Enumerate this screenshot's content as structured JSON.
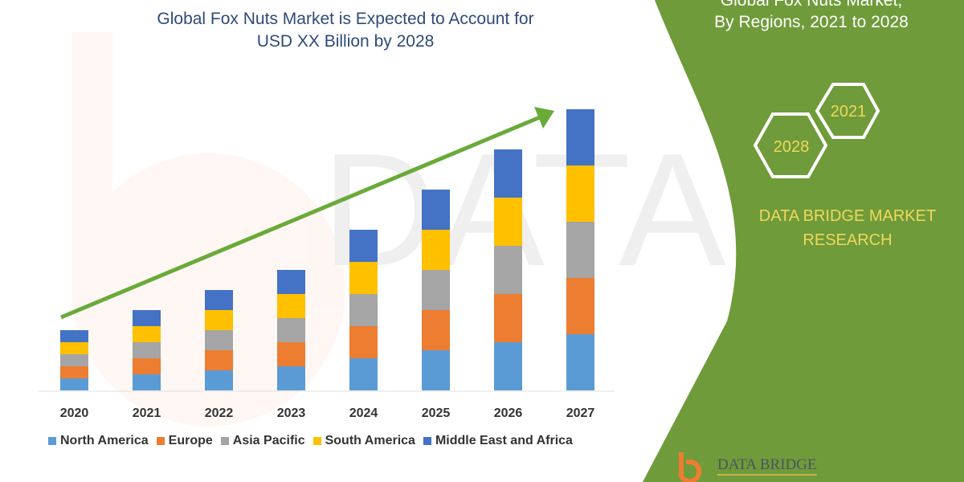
{
  "title_line1": "Global Fox Nuts Market is Expected to Account for",
  "title_line2": "USD XX Billion by 2028",
  "side_panel": {
    "title_line1": "Global Fox Nuts Market,",
    "title_line2": "By Regions, 2021 to 2028",
    "hex_years": [
      "2028",
      "2021"
    ],
    "brand_line1": "DATA BRIDGE MARKET",
    "brand_line2": "RESEARCH",
    "logo_text": "DATA BRIDGE",
    "panel_color": "#6f9b3a",
    "accent_text_color": "#f0d85a"
  },
  "watermark": "DATA BRIDGE MARKET RESEARCH",
  "chart_data": {
    "type": "bar",
    "stacked": true,
    "categories": [
      "2020",
      "2021",
      "2022",
      "2023",
      "2024",
      "2025",
      "2026",
      "2027"
    ],
    "series": [
      {
        "name": "North America",
        "color": "#5b9bd5",
        "values": [
          15,
          20,
          25,
          30,
          40,
          50,
          60,
          70
        ]
      },
      {
        "name": "Europe",
        "color": "#ed7d31",
        "values": [
          15,
          20,
          25,
          30,
          40,
          50,
          60,
          70
        ]
      },
      {
        "name": "Asia Pacific",
        "color": "#a5a5a5",
        "values": [
          15,
          20,
          25,
          30,
          40,
          50,
          60,
          70
        ]
      },
      {
        "name": "South America",
        "color": "#ffc000",
        "values": [
          15,
          20,
          25,
          30,
          40,
          50,
          60,
          70
        ]
      },
      {
        "name": "Middle East and Africa",
        "color": "#4472c4",
        "values": [
          15,
          20,
          25,
          30,
          40,
          50,
          60,
          70
        ]
      }
    ],
    "y_axis_shown": false,
    "grid": false,
    "legend_position": "bottom",
    "trend_arrow_color": "#6aaa3a"
  }
}
